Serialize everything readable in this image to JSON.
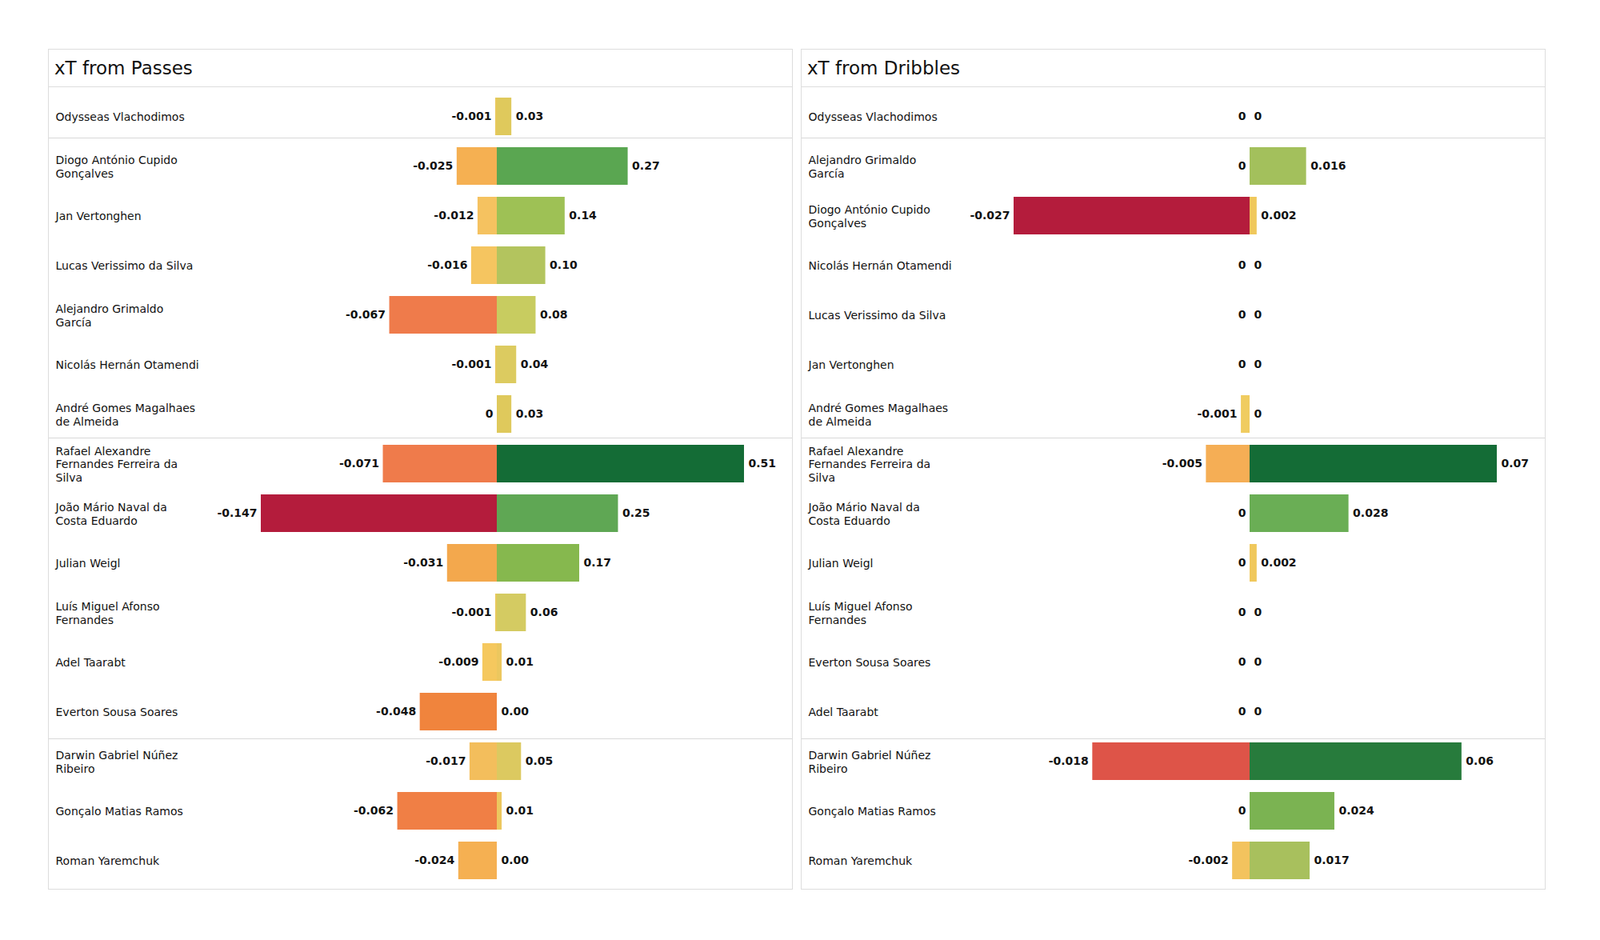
{
  "chart_data": [
    {
      "type": "bar",
      "title": "xT from Passes",
      "orientation": "horizontal",
      "data_labels": true,
      "tick_labels": "y",
      "categories": [
        "Odysseas Vlachodimos",
        "Diogo António Cupido\nGonçalves",
        "Jan Vertonghen",
        "Lucas Verissimo da Silva",
        "Alejandro Grimaldo\nGarcía",
        "Nicolás Hernán Otamendi",
        "André Gomes Magalhaes\nde Almeida",
        "Rafael Alexandre\nFernandes Ferreira da\nSilva",
        "João Mário Naval da\nCosta Eduardo",
        "Julian Weigl",
        "Luís Miguel Afonso\nFernandes",
        "Adel Taarabt",
        "Everton Sousa Soares",
        "Darwin Gabriel Núñez\nRibeiro",
        "Gonçalo Matias Ramos",
        "Roman Yaremchuk"
      ],
      "series": [
        {
          "values": [
            -0.001,
            -0.025,
            -0.012,
            -0.016,
            -0.067,
            -0.001,
            0,
            -0.071,
            -0.147,
            -0.031,
            -0.001,
            -0.009,
            -0.048,
            -0.017,
            -0.062,
            -0.024
          ],
          "value_labels": [
            "-0.001",
            "-0.025",
            "-0.012",
            "-0.016",
            "-0.067",
            "-0.001",
            "0",
            "-0.071",
            "-0.147",
            "-0.031",
            "-0.001",
            "-0.009",
            "-0.048",
            "-0.017",
            "-0.062",
            "-0.024"
          ],
          "colors": [
            "#e8c95c",
            "#f5b052",
            "#f5c260",
            "#f5c560",
            "#ef7b4b",
            "#e8c95c",
            "#e8c95c",
            "#ef7b4b",
            "#b41c3c",
            "#f3a84d",
            "#e8c95c",
            "#f5c85e",
            "#f0843d",
            "#f3be5c",
            "#f07f45",
            "#f5b052"
          ],
          "xlim": [
            -0.147,
            0
          ]
        },
        {
          "values": [
            0.03,
            0.27,
            0.14,
            0.1,
            0.08,
            0.04,
            0.03,
            0.51,
            0.25,
            0.17,
            0.06,
            0.01,
            0,
            0.05,
            0.01,
            0
          ],
          "value_labels": [
            "0.03",
            "0.27",
            "0.14",
            "0.10",
            "0.08",
            "0.04",
            "0.03",
            "0.51",
            "0.25",
            "0.17",
            "0.06",
            "0.01",
            "0.00",
            "0.05",
            "0.01",
            "0.00"
          ],
          "colors": [
            "#dfc95c",
            "#5aa651",
            "#9ec155",
            "#b3c45e",
            "#c8cc60",
            "#dccb60",
            "#dfc95c",
            "#146c36",
            "#5fa754",
            "#86b84e",
            "#d4cb62",
            "#ecc75e",
            "#f0c35c",
            "#dcc960",
            "#ecc75e",
            "#f0c35c"
          ],
          "xlim": [
            0,
            0.51
          ]
        }
      ]
    },
    {
      "type": "bar",
      "title": "xT from Dribbles",
      "orientation": "horizontal",
      "data_labels": true,
      "tick_labels": "y",
      "categories": [
        "Odysseas Vlachodimos",
        "Alejandro Grimaldo\nGarcía",
        "Diogo António Cupido\nGonçalves",
        "Nicolás Hernán Otamendi",
        "Lucas Verissimo da Silva",
        "Jan Vertonghen",
        "André Gomes Magalhaes\nde Almeida",
        "Rafael Alexandre\nFernandes Ferreira da\nSilva",
        "João Mário Naval da\nCosta Eduardo",
        "Julian Weigl",
        "Luís Miguel Afonso\nFernandes",
        "Everton Sousa Soares",
        "Adel Taarabt",
        "Darwin Gabriel Núñez\nRibeiro",
        "Gonçalo Matias Ramos",
        "Roman Yaremchuk"
      ],
      "series": [
        {
          "values": [
            0,
            0,
            -0.027,
            0,
            0,
            0,
            -0.001,
            -0.005,
            0,
            0,
            0,
            0,
            0,
            -0.018,
            0,
            -0.002
          ],
          "value_labels": [
            "0",
            "0",
            "-0.027",
            "0",
            "0",
            "0",
            "-0.001",
            "-0.005",
            "0",
            "0",
            "0",
            "0",
            "0",
            "-0.018",
            "0",
            "-0.002"
          ],
          "colors": [
            "#f0cc60",
            "#f0cc60",
            "#b41c3c",
            "#f0cc60",
            "#f0cc60",
            "#f0cc60",
            "#f0cc60",
            "#f5ae55",
            "#f0cc60",
            "#f0cc60",
            "#f0cc60",
            "#f0cc60",
            "#f0cc60",
            "#de5448",
            "#f0cc60",
            "#f3c35e"
          ],
          "xlim": [
            -0.027,
            0
          ]
        },
        {
          "values": [
            0,
            0.016,
            0.002,
            0,
            0,
            0,
            0,
            0.07,
            0.028,
            0.002,
            0,
            0,
            0,
            0.06,
            0.024,
            0.017
          ],
          "value_labels": [
            "0",
            "0.016",
            "0.002",
            "0",
            "0",
            "0",
            "0",
            "0.07",
            "0.028",
            "0.002",
            "0",
            "0",
            "0",
            "0.06",
            "0.024",
            "0.017"
          ],
          "colors": [
            "#e8cb5e",
            "#a3c05c",
            "#f0c85c",
            "#e8cb5e",
            "#e8cb5e",
            "#e8cb5e",
            "#e8cb5e",
            "#146c36",
            "#6aae55",
            "#f0c85c",
            "#e8cb5e",
            "#e8cb5e",
            "#e8cb5e",
            "#277b3c",
            "#7bb352",
            "#a8c05d"
          ],
          "xlim": [
            0,
            0.07
          ]
        }
      ]
    }
  ]
}
